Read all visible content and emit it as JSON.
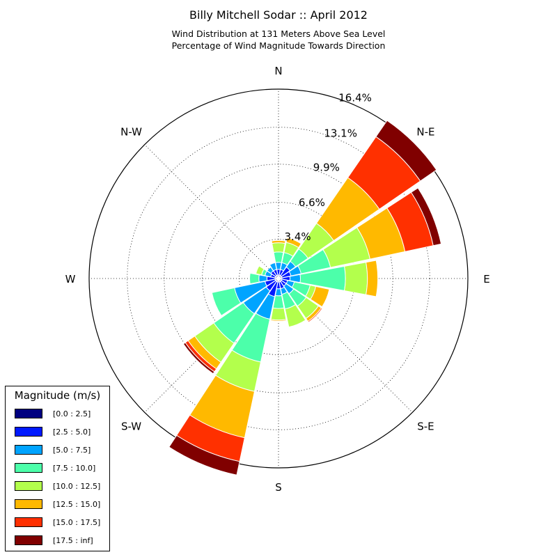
{
  "header": {
    "title": "Billy Mitchell Sodar :: April 2012",
    "subtitle_line1": "Wind Distribution at 131 Meters Above Sea Level",
    "subtitle_line2": "Percentage of Wind Magnitude Towards Direction"
  },
  "chart_data": {
    "type": "windrose",
    "directions": [
      "N",
      "NNE",
      "NE",
      "ENE",
      "E",
      "ESE",
      "SE",
      "SSE",
      "S",
      "SSW",
      "SW",
      "WSW",
      "W",
      "WNW",
      "NW",
      "NNW"
    ],
    "direction_labels": [
      "N",
      "N-E",
      "E",
      "S-E",
      "S",
      "S-W",
      "W",
      "N-W"
    ],
    "radial_ticks": [
      3.4,
      6.6,
      9.9,
      13.1,
      16.4
    ],
    "radial_tick_labels": [
      "3.4%",
      "6.6%",
      "9.9%",
      "13.1%",
      "16.4%"
    ],
    "rmax": 16.4,
    "grid": true,
    "legend_title": "Magnitude (m/s)",
    "legend_position": "lower-left",
    "bins": [
      "[0.0 : 2.5]",
      "[2.5 : 5.0]",
      "[5.0 : 7.5]",
      "[7.5 : 10.0]",
      "[10.0 : 12.5]",
      "[12.5 : 15.0]",
      "[15.0 : 17.5]",
      "[17.5 : inf]"
    ],
    "colors": [
      "#000080",
      "#0019ff",
      "#00a4ff",
      "#4cffaa",
      "#b3ff4c",
      "#ffb900",
      "#ff3000",
      "#800000"
    ],
    "cumulative_percent": [
      [
        0.3,
        0.8,
        1.4,
        2.3,
        3.1,
        3.3,
        3.3,
        3.3
      ],
      [
        0.3,
        0.8,
        1.4,
        2.3,
        3.2,
        3.6,
        3.6,
        3.6
      ],
      [
        0.3,
        1.2,
        1.8,
        3.1,
        5.8,
        10.6,
        14.9,
        16.6
      ],
      [
        0.3,
        1.1,
        2.0,
        4.6,
        8.1,
        11.2,
        13.7,
        14.4
      ],
      [
        0.3,
        1.0,
        1.9,
        5.8,
        7.7,
        8.6,
        8.6,
        8.6
      ],
      [
        0.3,
        0.8,
        1.4,
        2.8,
        3.3,
        4.5,
        4.5,
        4.5
      ],
      [
        0.3,
        0.8,
        1.6,
        2.9,
        4.2,
        4.5,
        4.6,
        4.6
      ],
      [
        0.3,
        0.9,
        1.4,
        2.7,
        4.3,
        4.3,
        4.3,
        4.3
      ],
      [
        0.3,
        0.9,
        1.5,
        2.6,
        3.6,
        3.7,
        3.7,
        3.7
      ],
      [
        0.3,
        1.6,
        3.6,
        7.4,
        10.0,
        14.1,
        16.2,
        17.4
      ],
      [
        0.3,
        1.3,
        3.7,
        6.8,
        8.8,
        9.5,
        9.8,
        10.0
      ],
      [
        0.3,
        1.2,
        3.9,
        5.9,
        5.9,
        5.9,
        5.9,
        5.9
      ],
      [
        0.3,
        1.0,
        1.7,
        2.5,
        2.5,
        2.5,
        2.5,
        2.5
      ],
      [
        0.3,
        0.7,
        1.2,
        1.5,
        2.0,
        2.0,
        2.0,
        2.0
      ],
      [
        0.3,
        0.8,
        1.2,
        1.2,
        1.2,
        1.2,
        1.2,
        1.2
      ],
      [
        0.3,
        0.8,
        1.4,
        1.4,
        1.4,
        1.4,
        1.4,
        1.4
      ]
    ]
  }
}
